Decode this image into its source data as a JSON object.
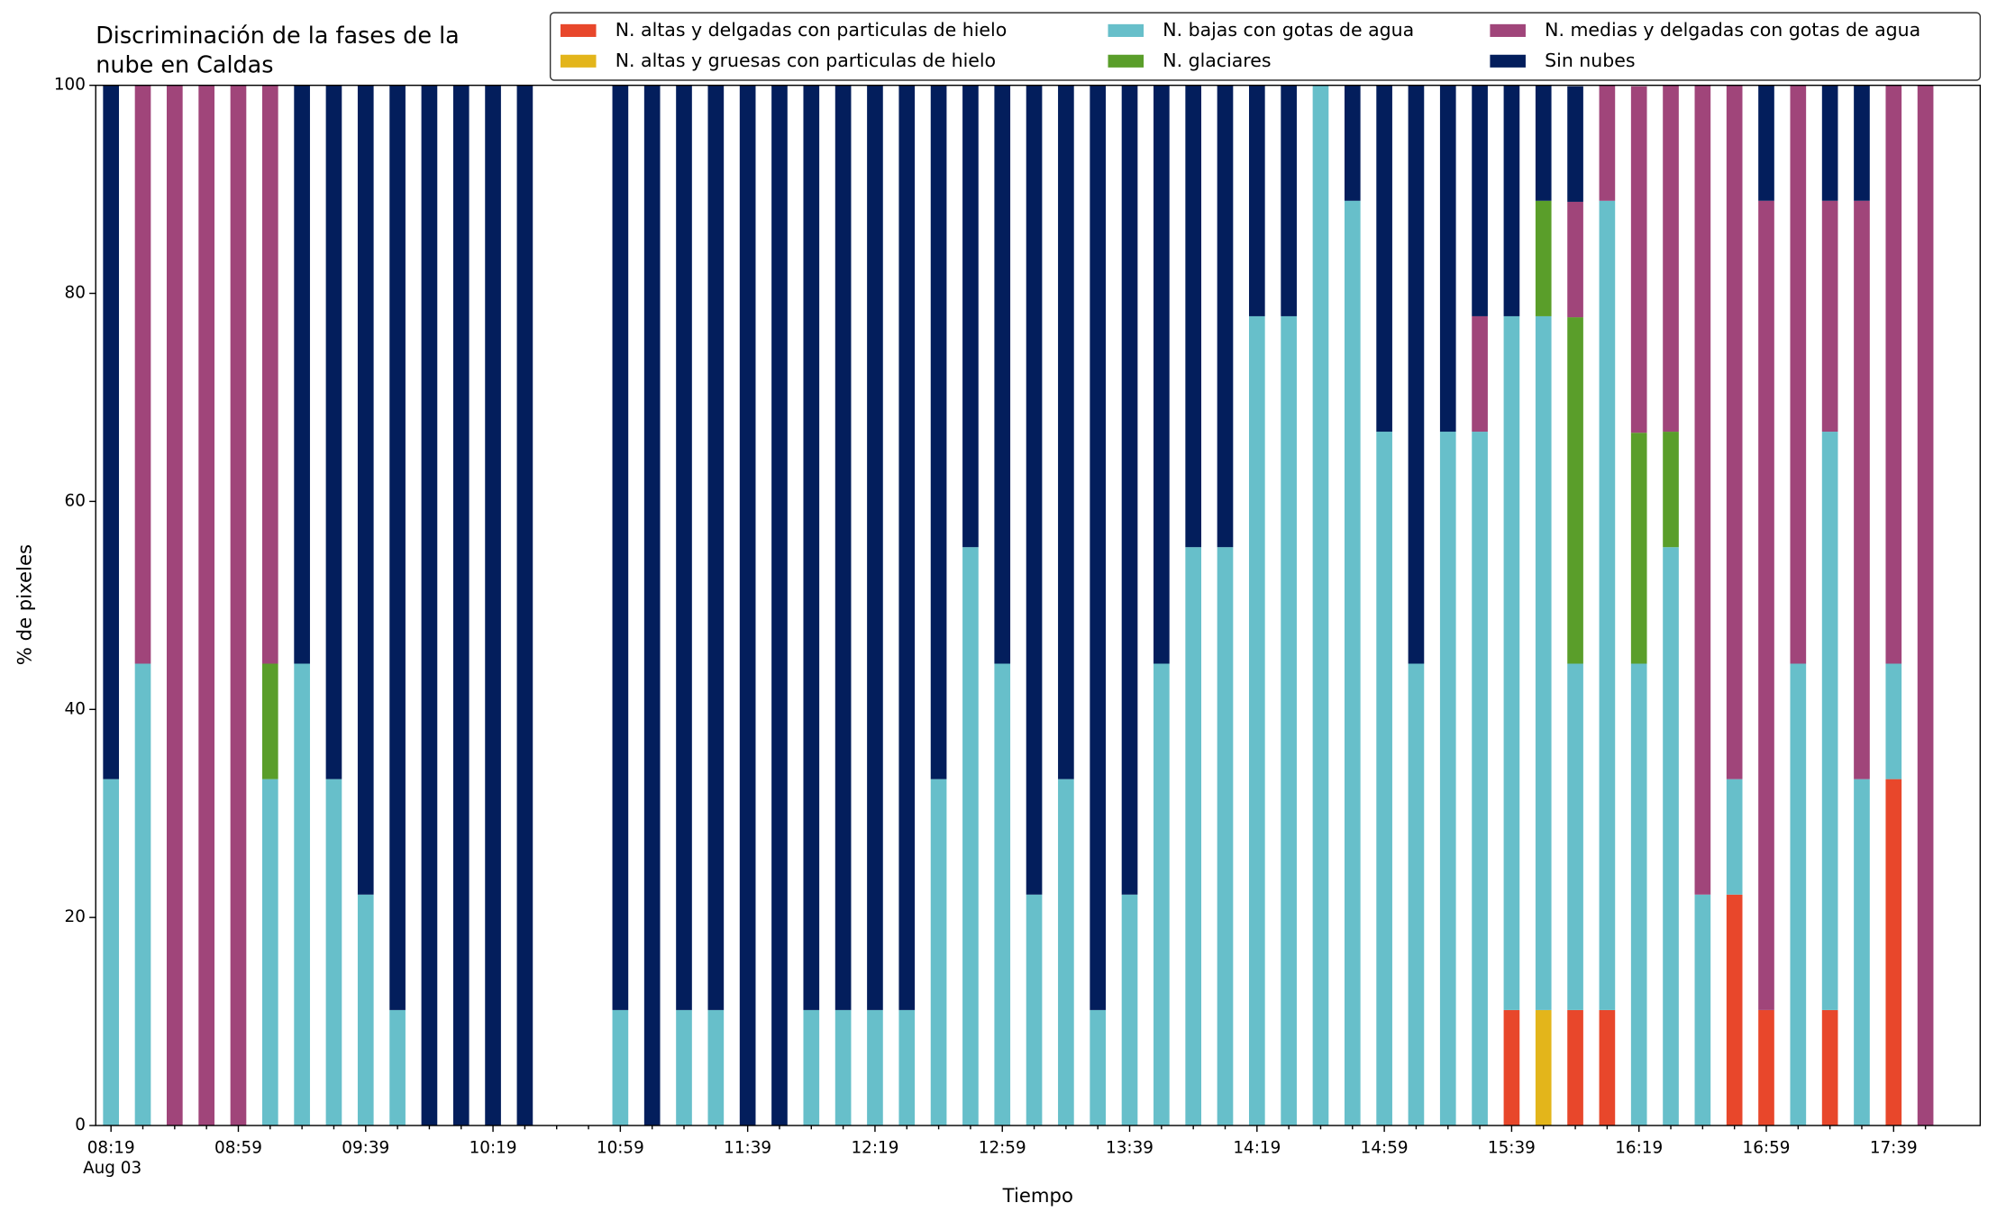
{
  "chart_data": {
    "type": "stacked_bar",
    "title": [
      "Discriminación de la fases de la",
      "nube en Caldas"
    ],
    "x_label": "Tiempo",
    "y_label": "% de pixeles",
    "x_date_label": "Aug 03",
    "categories": [
      "08:19",
      null,
      null,
      null,
      "08:59",
      null,
      null,
      null,
      "09:39",
      null,
      null,
      null,
      "10:19",
      null,
      null,
      null,
      "10:59",
      null,
      null,
      null,
      "11:39",
      null,
      null,
      null,
      "12:19",
      null,
      null,
      null,
      "12:59",
      null,
      null,
      null,
      "13:39",
      null,
      null,
      null,
      "14:19",
      null,
      null,
      null,
      "14:59",
      null,
      null,
      null,
      "15:39",
      null,
      null,
      null,
      "16:19",
      null,
      null,
      null,
      "16:59",
      null,
      null,
      null,
      "17:39",
      null
    ],
    "ylim": [
      0,
      100
    ],
    "yticks": [
      0,
      20,
      40,
      60,
      80,
      100
    ],
    "legend": "upper center",
    "series": [
      {
        "name": "N. altas y delgadas con particulas de hielo",
        "color": "#e8472b",
        "values": [
          0,
          0,
          0,
          0,
          0,
          0,
          0,
          0,
          0,
          0,
          0,
          0,
          0,
          0,
          null,
          null,
          0,
          0,
          0,
          0,
          0,
          0,
          0,
          0,
          0,
          0,
          0,
          0,
          0,
          0,
          0,
          0,
          0,
          0,
          0,
          0,
          0,
          0,
          0,
          0,
          0,
          0,
          0,
          0,
          11.1,
          0,
          11.1,
          11.1,
          0,
          0,
          0,
          22.2,
          11.1,
          0,
          11.1,
          0,
          33.3,
          0
        ]
      },
      {
        "name": "N. altas y gruesas con particulas de hielo",
        "color": "#e3b51b",
        "values": [
          0,
          0,
          0,
          0,
          0,
          0,
          0,
          0,
          0,
          0,
          0,
          0,
          0,
          0,
          null,
          null,
          0,
          0,
          0,
          0,
          0,
          0,
          0,
          0,
          0,
          0,
          0,
          0,
          0,
          0,
          0,
          0,
          0,
          0,
          0,
          0,
          0,
          0,
          0,
          0,
          0,
          0,
          0,
          0,
          0,
          11.1,
          0,
          0,
          0,
          0,
          0,
          0,
          0,
          0,
          0,
          0,
          0,
          0
        ]
      },
      {
        "name": "N. bajas con gotas de agua",
        "color": "#67bfca",
        "values": [
          33.3,
          44.4,
          0,
          0,
          0,
          33.3,
          44.4,
          33.3,
          22.2,
          11.1,
          0,
          0,
          0,
          0,
          null,
          null,
          11.1,
          0,
          11.1,
          11.1,
          0,
          0,
          11.1,
          11.1,
          11.1,
          11.1,
          33.3,
          55.6,
          44.4,
          22.2,
          33.3,
          11.1,
          22.2,
          44.4,
          55.6,
          55.6,
          77.8,
          77.8,
          100,
          88.9,
          66.7,
          44.4,
          66.7,
          66.7,
          66.7,
          66.7,
          33.3,
          77.8,
          44.4,
          55.6,
          22.2,
          11.1,
          0,
          44.4,
          55.6,
          33.3,
          11.1,
          0
        ]
      },
      {
        "name": "N. glaciares",
        "color": "#5a9e2a",
        "values": [
          0,
          0,
          0,
          0,
          0,
          11.1,
          0,
          0,
          0,
          0,
          0,
          0,
          0,
          0,
          null,
          null,
          0,
          0,
          0,
          0,
          0,
          0,
          0,
          0,
          0,
          0,
          0,
          0,
          0,
          0,
          0,
          0,
          0,
          0,
          0,
          0,
          0,
          0,
          0,
          0,
          0,
          0,
          0,
          0,
          0,
          11.1,
          33.3,
          0,
          22.2,
          11.1,
          0,
          0,
          0,
          0,
          0,
          0,
          0,
          0
        ]
      },
      {
        "name": "N. medias y delgadas con gotas de agua",
        "color": "#a0457a",
        "values": [
          0,
          55.6,
          100,
          100,
          100,
          55.6,
          0,
          0,
          0,
          0,
          0,
          0,
          0,
          0,
          null,
          null,
          0,
          0,
          0,
          0,
          0,
          0,
          0,
          0,
          0,
          0,
          0,
          0,
          0,
          0,
          0,
          0,
          0,
          0,
          0,
          0,
          0,
          0,
          0,
          0,
          0,
          0,
          0,
          11.1,
          0,
          0,
          11.1,
          11.1,
          33.3,
          33.3,
          77.8,
          66.7,
          77.8,
          55.6,
          22.2,
          55.6,
          55.6,
          100
        ]
      },
      {
        "name": "Sin nubes",
        "color": "#031e5c",
        "values": [
          66.7,
          0,
          0,
          0,
          0,
          0,
          55.6,
          66.7,
          77.8,
          88.9,
          100,
          100,
          100,
          100,
          null,
          null,
          88.9,
          100,
          88.9,
          88.9,
          100,
          100,
          88.9,
          88.9,
          88.9,
          88.9,
          66.7,
          44.4,
          55.6,
          77.8,
          66.7,
          88.9,
          77.8,
          55.6,
          44.4,
          44.4,
          22.2,
          22.2,
          0,
          11.1,
          33.3,
          55.6,
          33.3,
          22.2,
          22.2,
          11.1,
          11.1,
          0,
          0,
          0,
          0,
          0,
          11.1,
          0,
          11.1,
          11.1,
          0,
          0
        ]
      }
    ]
  }
}
